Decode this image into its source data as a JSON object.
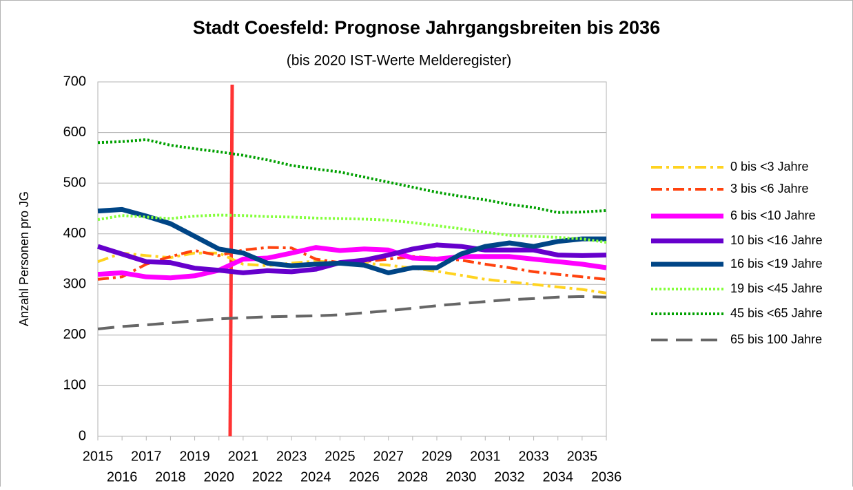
{
  "chart_data": {
    "type": "line",
    "title": "Stadt Coesfeld: Prognose Jahrgangsbreiten bis 2036",
    "subtitle": "(bis 2020 IST-Werte Melderegister)",
    "y_label": "Anzahl Personen pro JG",
    "categories": [
      "2015",
      "2016",
      "2017",
      "2018",
      "2019",
      "2020",
      "2021",
      "2022",
      "2023",
      "2024",
      "2025",
      "2026",
      "2027",
      "2028",
      "2029",
      "2030",
      "2031",
      "2032",
      "2033",
      "2034",
      "2035",
      "2036"
    ],
    "ylim": [
      0,
      700
    ],
    "yticks": [
      0,
      100,
      200,
      300,
      400,
      500,
      600,
      700
    ],
    "grid": true,
    "legend": "right",
    "series": [
      {
        "name": "0 bis <3 Jahre",
        "color": "#ffd320",
        "style": "dashdot",
        "values": [
          345,
          362,
          357,
          353,
          362,
          362,
          340,
          337,
          342,
          346,
          343,
          342,
          338,
          332,
          326,
          318,
          310,
          305,
          300,
          295,
          290,
          283
        ]
      },
      {
        "name": "3 bis <6 Jahre",
        "color": "#ff420e",
        "style": "dashdot",
        "values": [
          310,
          315,
          340,
          355,
          367,
          357,
          368,
          373,
          372,
          350,
          343,
          345,
          350,
          355,
          352,
          348,
          340,
          333,
          325,
          320,
          315,
          310
        ]
      },
      {
        "name": "6 bis <10 Jahre",
        "color": "#ff00ff",
        "style": "thick",
        "values": [
          320,
          323,
          315,
          313,
          317,
          328,
          350,
          352,
          362,
          373,
          367,
          370,
          368,
          352,
          350,
          355,
          355,
          355,
          350,
          345,
          340,
          333
        ]
      },
      {
        "name": "10 bis <16 Jahre",
        "color": "#6600cc",
        "style": "thick",
        "values": [
          375,
          360,
          345,
          343,
          332,
          328,
          323,
          327,
          325,
          330,
          343,
          348,
          358,
          370,
          378,
          375,
          368,
          368,
          368,
          358,
          357,
          358
        ]
      },
      {
        "name": "16 bis <19 Jahre",
        "color": "#004586",
        "style": "thick",
        "values": [
          445,
          448,
          435,
          420,
          395,
          370,
          362,
          342,
          337,
          340,
          342,
          338,
          323,
          333,
          333,
          360,
          375,
          382,
          375,
          385,
          390,
          390
        ]
      },
      {
        "name": "19 bis <45 Jahre",
        "color": "#83ff3a",
        "style": "dotted",
        "values": [
          428,
          436,
          433,
          430,
          435,
          437,
          436,
          434,
          433,
          431,
          430,
          429,
          427,
          422,
          416,
          410,
          403,
          397,
          395,
          393,
          390,
          383
        ]
      },
      {
        "name": "45 bis <65 Jahre",
        "color": "#00a000",
        "style": "dotted",
        "values": [
          580,
          582,
          586,
          575,
          568,
          562,
          555,
          546,
          535,
          528,
          522,
          512,
          502,
          492,
          482,
          474,
          467,
          458,
          452,
          442,
          443,
          446
        ]
      },
      {
        "name": "65 bis 100 Jahre",
        "color": "#666666",
        "style": "longdash",
        "values": [
          212,
          217,
          220,
          224,
          228,
          232,
          234,
          236,
          237,
          238,
          240,
          244,
          248,
          253,
          258,
          262,
          266,
          270,
          272,
          275,
          276,
          275
        ]
      }
    ]
  }
}
